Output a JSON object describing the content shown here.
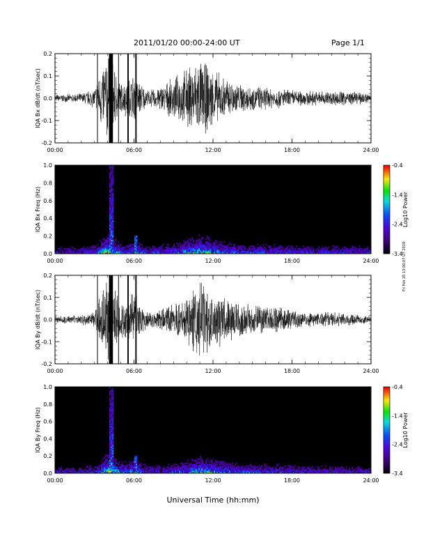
{
  "header": {
    "title": "2011/01/20  00:00-24:00 UT",
    "page": "Page 1/1"
  },
  "side_label": "Fri Feb 25 13:00:07 UT 2019",
  "colors": {
    "trace": "#000000",
    "spectrogram_background": "#000000"
  },
  "chart_data": [
    {
      "type": "line",
      "ylabel": "IQA Bx dB/dt (nT/sec)",
      "x_ticks": [
        "00:00",
        "06:00",
        "12:00",
        "18:00",
        "24:00"
      ],
      "y_ticks": [
        "0.2",
        "0.1",
        "0.0",
        "-0.1",
        "-0.2"
      ],
      "xlim": [
        0,
        24
      ],
      "ylim": [
        -0.2,
        0.2
      ],
      "series": [
        {
          "x": [
            0,
            1,
            2,
            3,
            4,
            5,
            6,
            7,
            8,
            9,
            10,
            11,
            12,
            13,
            14,
            15,
            16,
            17,
            18,
            19,
            20,
            21,
            22,
            23,
            24
          ],
          "amplitude": [
            0.015,
            0.015,
            0.02,
            0.04,
            0.2,
            0.06,
            0.1,
            0.03,
            0.05,
            0.08,
            0.12,
            0.16,
            0.12,
            0.08,
            0.06,
            0.05,
            0.045,
            0.04,
            0.035,
            0.03,
            0.03,
            0.03,
            0.03,
            0.025,
            0.02
          ]
        }
      ]
    },
    {
      "type": "heatmap",
      "ylabel": "IQA Bx Freq (Hz)",
      "x_ticks": [
        "00:00",
        "06:00",
        "12:00",
        "18:00",
        "24:00"
      ],
      "y_ticks": [
        "1.0",
        "0.8",
        "0.6",
        "0.4",
        "0.2",
        "0.0"
      ],
      "xlim": [
        0,
        24
      ],
      "ylim": [
        0,
        1
      ],
      "colorbar": {
        "label": "Log10 Power",
        "ticks": [
          "-0.4",
          "-1.4",
          "-2.4",
          "-3.4"
        ],
        "range": [
          -3.4,
          -0.4
        ]
      }
    },
    {
      "type": "line",
      "ylabel": "IQA By dB/dt (nT/sec)",
      "x_ticks": [
        "00:00",
        "06:00",
        "12:00",
        "18:00",
        "24:00"
      ],
      "y_ticks": [
        "0.2",
        "0.1",
        "0.0",
        "-0.1",
        "-0.2"
      ],
      "xlim": [
        0,
        24
      ],
      "ylim": [
        -0.2,
        0.2
      ],
      "series": [
        {
          "x": [
            0,
            1,
            2,
            3,
            4,
            5,
            6,
            7,
            8,
            9,
            10,
            11,
            12,
            13,
            14,
            15,
            16,
            17,
            18,
            19,
            20,
            21,
            22,
            23,
            24
          ],
          "amplitude": [
            0.015,
            0.015,
            0.02,
            0.03,
            0.2,
            0.08,
            0.12,
            0.03,
            0.04,
            0.06,
            0.1,
            0.16,
            0.12,
            0.09,
            0.07,
            0.06,
            0.06,
            0.05,
            0.04,
            0.035,
            0.03,
            0.03,
            0.025,
            0.02,
            0.015
          ]
        }
      ]
    },
    {
      "type": "heatmap",
      "ylabel": "IQA By Freq (Hz)",
      "x_ticks": [
        "00:00",
        "06:00",
        "12:00",
        "18:00",
        "24:00"
      ],
      "y_ticks": [
        "1.0",
        "0.8",
        "0.6",
        "0.4",
        "0.2",
        "0.0"
      ],
      "xlim": [
        0,
        24
      ],
      "ylim": [
        0,
        1
      ],
      "colorbar": {
        "label": "Log10 Power",
        "ticks": [
          "-0.4",
          "-1.4",
          "-2.4",
          "-3.4"
        ],
        "range": [
          -3.4,
          -0.4
        ]
      }
    }
  ],
  "xlabel": "Universal Time (hh:mm)"
}
